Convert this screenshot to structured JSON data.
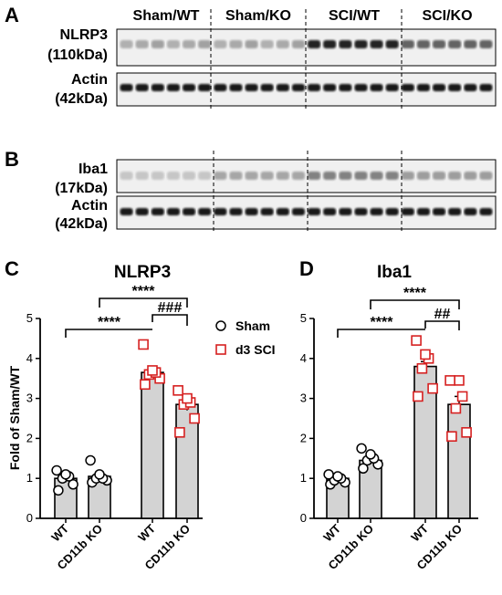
{
  "panel_letters": {
    "a": "A",
    "b": "B",
    "c": "C",
    "d": "D"
  },
  "group_headers": [
    "Sham/WT",
    "Sham/KO",
    "SCI/WT",
    "SCI/KO"
  ],
  "blot_a": {
    "target_name": "NLRP3",
    "target_size": "(110kDa)",
    "loading_name": "Actin",
    "loading_size": "(42kDa)"
  },
  "blot_b": {
    "target_name": "Iba1",
    "target_size": "(17kDa)",
    "loading_name": "Actin",
    "loading_size": "(42kDa)"
  },
  "legend": {
    "sham": "Sham",
    "sci": "d3 SCI"
  },
  "colors": {
    "bar_fill": "#d3d3d3",
    "sham_marker": "#000000",
    "sci_marker": "#d62020"
  },
  "chart_data": [
    {
      "type": "bar",
      "title": "NLRP3",
      "ylabel": "Fold of Sham/WT",
      "ylim": [
        0,
        5
      ],
      "yticks": [
        "0",
        "1",
        "2",
        "3",
        "4",
        "5"
      ],
      "categories": [
        "WT",
        "CD11b KO",
        "WT",
        "CD11b KO"
      ],
      "values": [
        1.0,
        1.05,
        3.65,
        2.85
      ],
      "sem": [
        0.1,
        0.1,
        0.12,
        0.15
      ],
      "groups": [
        "sham",
        "sham",
        "sci",
        "sci"
      ],
      "points": [
        [
          0.7,
          0.85,
          1.0,
          1.05,
          1.1,
          1.2
        ],
        [
          0.9,
          0.95,
          1.0,
          1.0,
          1.1,
          1.45
        ],
        [
          3.35,
          3.5,
          3.6,
          3.65,
          3.7,
          4.35
        ],
        [
          2.15,
          2.5,
          2.85,
          2.9,
          3.0,
          3.2
        ]
      ],
      "significance": [
        {
          "from": 0,
          "to": 2,
          "label": "****"
        },
        {
          "from": 1,
          "to": 3,
          "label": "****"
        },
        {
          "from": 2,
          "to": 3,
          "label": "###"
        }
      ]
    },
    {
      "type": "bar",
      "title": "Iba1",
      "ylabel": "",
      "ylim": [
        0,
        5
      ],
      "yticks": [
        "0",
        "1",
        "2",
        "3",
        "4",
        "5"
      ],
      "categories": [
        "WT",
        "CD11b KO",
        "WT",
        "CD11b KO"
      ],
      "values": [
        1.0,
        1.45,
        3.8,
        2.85
      ],
      "sem": [
        0.08,
        0.1,
        0.12,
        0.2
      ],
      "groups": [
        "sham",
        "sham",
        "sci",
        "sci"
      ],
      "points": [
        [
          0.85,
          0.9,
          0.95,
          1.0,
          1.05,
          1.1
        ],
        [
          1.25,
          1.35,
          1.45,
          1.5,
          1.6,
          1.75
        ],
        [
          3.05,
          3.25,
          3.75,
          4.0,
          4.1,
          4.45
        ],
        [
          2.05,
          2.15,
          2.75,
          3.05,
          3.45,
          3.45
        ]
      ],
      "significance": [
        {
          "from": 0,
          "to": 2,
          "label": "****"
        },
        {
          "from": 1,
          "to": 3,
          "label": "****"
        },
        {
          "from": 2,
          "to": 3,
          "label": "##"
        }
      ]
    }
  ]
}
